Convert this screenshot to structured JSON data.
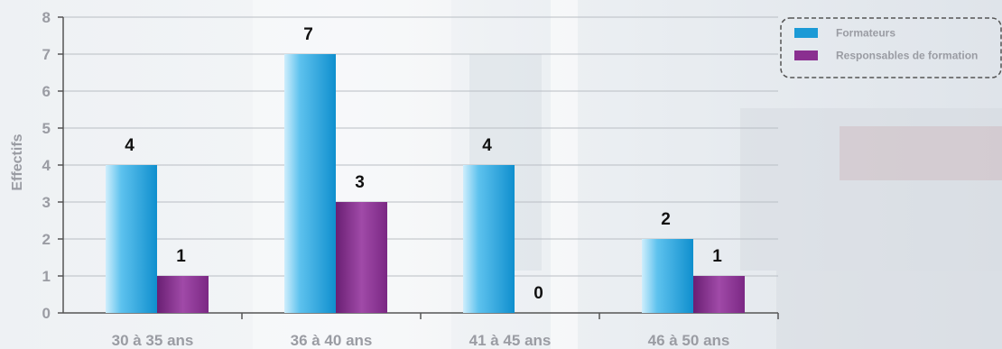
{
  "chart_data": {
    "type": "bar",
    "categories": [
      "30 à 35 ans",
      "36 à 40 ans",
      "41 à 45 ans",
      "46 à 50 ans"
    ],
    "series": [
      {
        "name": "Formateurs",
        "values": [
          4,
          7,
          4,
          2
        ],
        "color": "#1b9ad6"
      },
      {
        "name": "Responsables de formation",
        "values": [
          1,
          3,
          0,
          1
        ],
        "color": "#8a2f90"
      }
    ],
    "ylabel": "Effectifs",
    "xlabel": "",
    "title": "",
    "ylim": [
      0,
      8
    ],
    "yticks": [
      0,
      1,
      2,
      3,
      4,
      5,
      6,
      7,
      8
    ],
    "grid": true,
    "legend_position": "top-right"
  }
}
